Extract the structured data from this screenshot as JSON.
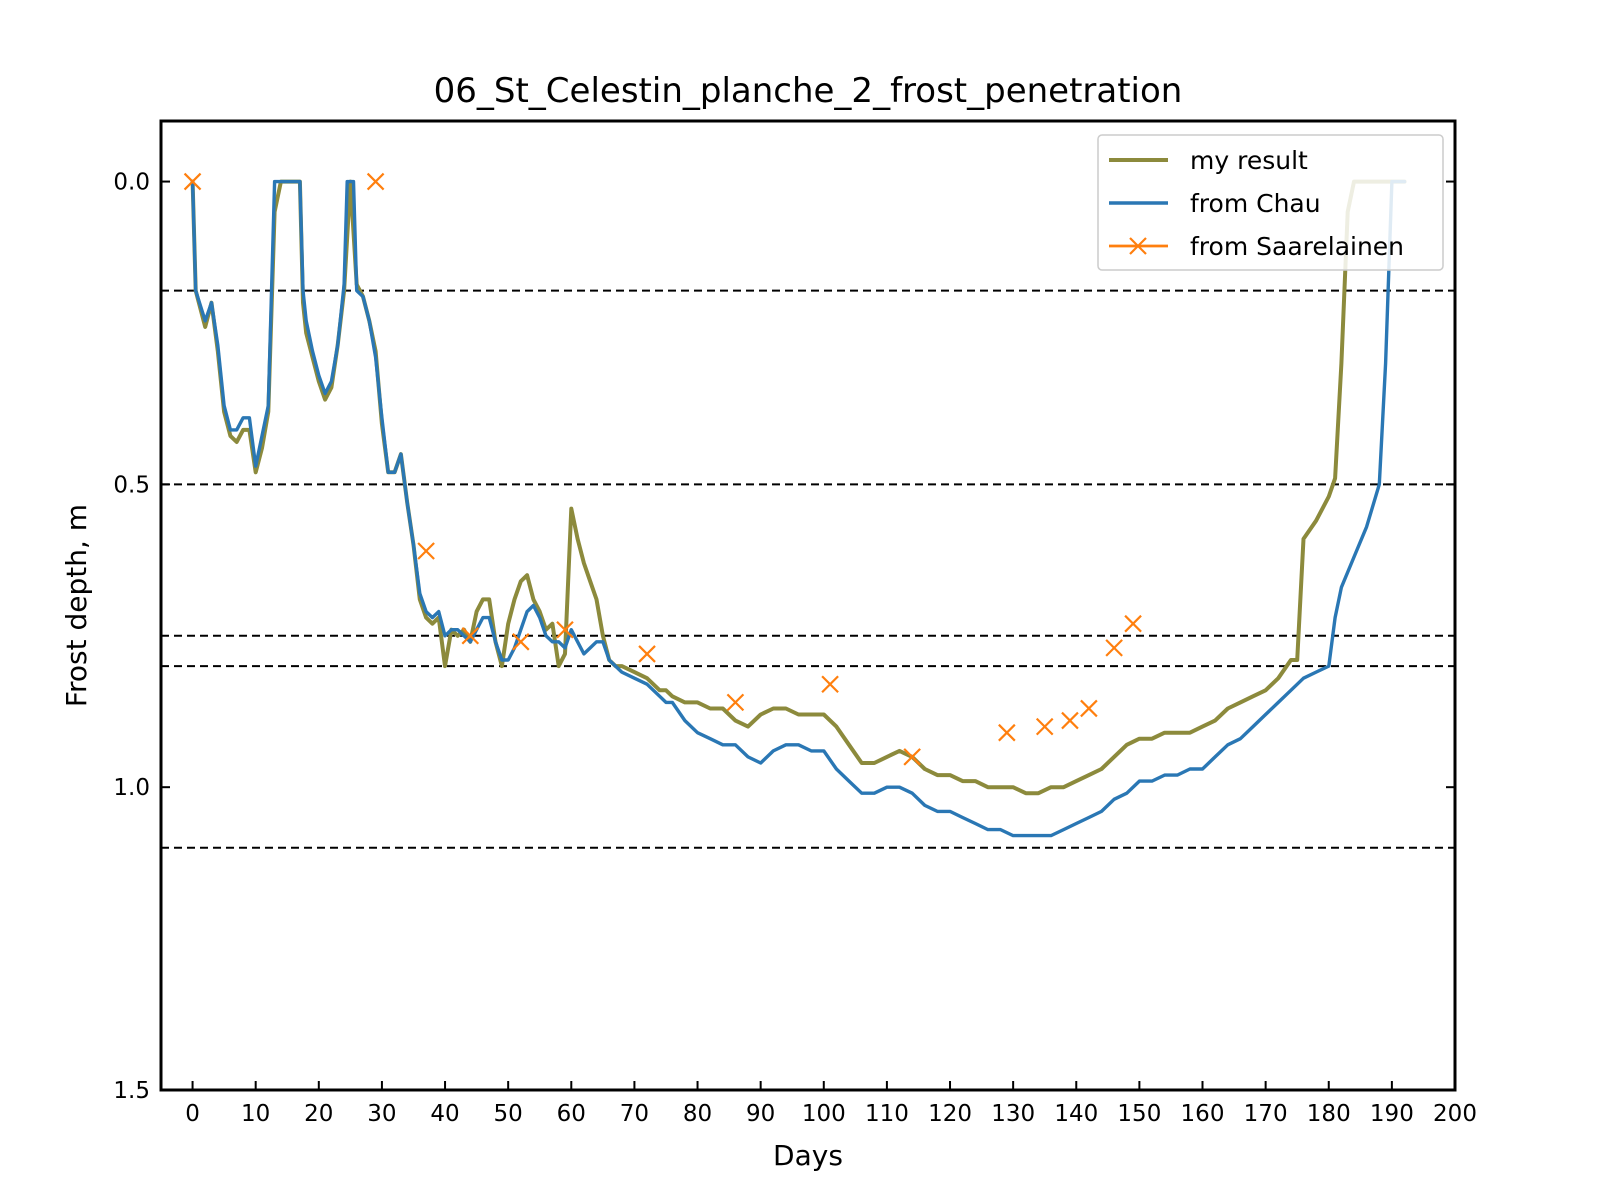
{
  "chart_data": {
    "type": "line",
    "title": "06_St_Celestin_planche_2_frost_penetration",
    "xlabel": "Days",
    "ylabel": "Frost depth, m",
    "xlim": [
      -5,
      200
    ],
    "ylim": [
      1.5,
      -0.1
    ],
    "y_inverted": true,
    "x_ticks": [
      "0",
      "10",
      "20",
      "30",
      "40",
      "50",
      "60",
      "70",
      "80",
      "90",
      "100",
      "110",
      "120",
      "130",
      "140",
      "150",
      "160",
      "170",
      "180",
      "190",
      "200"
    ],
    "y_ticks": [
      "0.0",
      "0.5",
      "1.0",
      "1.5"
    ],
    "reference_lines_y": [
      0.18,
      0.5,
      0.75,
      0.8,
      1.1
    ],
    "legend_position": "upper right",
    "series": [
      {
        "name": "my result",
        "color": "#8c8a3c",
        "style": "line",
        "points": [
          [
            0,
            0
          ],
          [
            0.5,
            0.18
          ],
          [
            2,
            0.24
          ],
          [
            3,
            0.2
          ],
          [
            4,
            0.28
          ],
          [
            5,
            0.38
          ],
          [
            6,
            0.42
          ],
          [
            7,
            0.43
          ],
          [
            8,
            0.41
          ],
          [
            9,
            0.41
          ],
          [
            10,
            0.48
          ],
          [
            11,
            0.44
          ],
          [
            12,
            0.38
          ],
          [
            13,
            0.05
          ],
          [
            14,
            0
          ],
          [
            17,
            0
          ],
          [
            17.5,
            0.2
          ],
          [
            18,
            0.25
          ],
          [
            19,
            0.29
          ],
          [
            20,
            0.33
          ],
          [
            21,
            0.36
          ],
          [
            22,
            0.34
          ],
          [
            23,
            0.27
          ],
          [
            24,
            0.18
          ],
          [
            25,
            0
          ],
          [
            26,
            0.17
          ],
          [
            27,
            0.19
          ],
          [
            28,
            0.23
          ],
          [
            29,
            0.28
          ],
          [
            30,
            0.4
          ],
          [
            31,
            0.48
          ],
          [
            32,
            0.48
          ],
          [
            33,
            0.45
          ],
          [
            34,
            0.53
          ],
          [
            35,
            0.6
          ],
          [
            36,
            0.69
          ],
          [
            37,
            0.72
          ],
          [
            38,
            0.73
          ],
          [
            39,
            0.72
          ],
          [
            40,
            0.8
          ],
          [
            41,
            0.74
          ],
          [
            42,
            0.75
          ],
          [
            43,
            0.74
          ],
          [
            44,
            0.76
          ],
          [
            45,
            0.71
          ],
          [
            46,
            0.69
          ],
          [
            47,
            0.69
          ],
          [
            48,
            0.76
          ],
          [
            49,
            0.8
          ],
          [
            50,
            0.73
          ],
          [
            51,
            0.69
          ],
          [
            52,
            0.66
          ],
          [
            53,
            0.65
          ],
          [
            54,
            0.69
          ],
          [
            55,
            0.71
          ],
          [
            56,
            0.74
          ],
          [
            57,
            0.73
          ],
          [
            58,
            0.8
          ],
          [
            59,
            0.78
          ],
          [
            60,
            0.54
          ],
          [
            61,
            0.59
          ],
          [
            62,
            0.63
          ],
          [
            63,
            0.66
          ],
          [
            64,
            0.69
          ],
          [
            65,
            0.75
          ],
          [
            66,
            0.79
          ],
          [
            67,
            0.8
          ],
          [
            68,
            0.8
          ],
          [
            70,
            0.81
          ],
          [
            72,
            0.82
          ],
          [
            74,
            0.84
          ],
          [
            75,
            0.84
          ],
          [
            76,
            0.85
          ],
          [
            78,
            0.86
          ],
          [
            80,
            0.86
          ],
          [
            82,
            0.87
          ],
          [
            84,
            0.87
          ],
          [
            86,
            0.89
          ],
          [
            88,
            0.9
          ],
          [
            90,
            0.88
          ],
          [
            92,
            0.87
          ],
          [
            94,
            0.87
          ],
          [
            96,
            0.88
          ],
          [
            98,
            0.88
          ],
          [
            100,
            0.88
          ],
          [
            102,
            0.9
          ],
          [
            104,
            0.93
          ],
          [
            106,
            0.96
          ],
          [
            108,
            0.96
          ],
          [
            110,
            0.95
          ],
          [
            112,
            0.94
          ],
          [
            114,
            0.95
          ],
          [
            116,
            0.97
          ],
          [
            118,
            0.98
          ],
          [
            120,
            0.98
          ],
          [
            122,
            0.99
          ],
          [
            124,
            0.99
          ],
          [
            126,
            1.0
          ],
          [
            128,
            1.0
          ],
          [
            130,
            1.0
          ],
          [
            132,
            1.01
          ],
          [
            134,
            1.01
          ],
          [
            136,
            1.0
          ],
          [
            138,
            1.0
          ],
          [
            140,
            0.99
          ],
          [
            142,
            0.98
          ],
          [
            144,
            0.97
          ],
          [
            146,
            0.95
          ],
          [
            148,
            0.93
          ],
          [
            150,
            0.92
          ],
          [
            152,
            0.92
          ],
          [
            154,
            0.91
          ],
          [
            156,
            0.91
          ],
          [
            158,
            0.91
          ],
          [
            160,
            0.9
          ],
          [
            162,
            0.89
          ],
          [
            164,
            0.87
          ],
          [
            166,
            0.86
          ],
          [
            168,
            0.85
          ],
          [
            170,
            0.84
          ],
          [
            172,
            0.82
          ],
          [
            174,
            0.79
          ],
          [
            175,
            0.79
          ],
          [
            176,
            0.59
          ],
          [
            178,
            0.56
          ],
          [
            180,
            0.52
          ],
          [
            181,
            0.49
          ],
          [
            182,
            0.3
          ],
          [
            183,
            0.05
          ],
          [
            184,
            0
          ],
          [
            190,
            0
          ],
          [
            192,
            0
          ]
        ]
      },
      {
        "name": "from Chau",
        "color": "#2a77b4",
        "style": "line",
        "points": [
          [
            0,
            0
          ],
          [
            0.5,
            0.18
          ],
          [
            2,
            0.23
          ],
          [
            3,
            0.2
          ],
          [
            4,
            0.27
          ],
          [
            5,
            0.37
          ],
          [
            6,
            0.41
          ],
          [
            7,
            0.41
          ],
          [
            8,
            0.39
          ],
          [
            9,
            0.39
          ],
          [
            10,
            0.47
          ],
          [
            11,
            0.42
          ],
          [
            12,
            0.37
          ],
          [
            13,
            0
          ],
          [
            17,
            0
          ],
          [
            17.5,
            0.18
          ],
          [
            18,
            0.23
          ],
          [
            19,
            0.28
          ],
          [
            20,
            0.32
          ],
          [
            21,
            0.35
          ],
          [
            22,
            0.33
          ],
          [
            23,
            0.27
          ],
          [
            24,
            0.17
          ],
          [
            24.5,
            0
          ],
          [
            25.5,
            0
          ],
          [
            26,
            0.18
          ],
          [
            27,
            0.19
          ],
          [
            28,
            0.23
          ],
          [
            29,
            0.29
          ],
          [
            30,
            0.39
          ],
          [
            31,
            0.48
          ],
          [
            32,
            0.48
          ],
          [
            33,
            0.45
          ],
          [
            34,
            0.53
          ],
          [
            35,
            0.6
          ],
          [
            36,
            0.68
          ],
          [
            37,
            0.71
          ],
          [
            38,
            0.72
          ],
          [
            39,
            0.71
          ],
          [
            40,
            0.75
          ],
          [
            41,
            0.74
          ],
          [
            42,
            0.74
          ],
          [
            43,
            0.75
          ],
          [
            44,
            0.76
          ],
          [
            45,
            0.74
          ],
          [
            46,
            0.72
          ],
          [
            47,
            0.72
          ],
          [
            48,
            0.76
          ],
          [
            49,
            0.79
          ],
          [
            50,
            0.79
          ],
          [
            51,
            0.77
          ],
          [
            52,
            0.74
          ],
          [
            53,
            0.71
          ],
          [
            54,
            0.7
          ],
          [
            55,
            0.72
          ],
          [
            56,
            0.75
          ],
          [
            57,
            0.76
          ],
          [
            58,
            0.76
          ],
          [
            59,
            0.77
          ],
          [
            60,
            0.74
          ],
          [
            61,
            0.76
          ],
          [
            62,
            0.78
          ],
          [
            63,
            0.77
          ],
          [
            64,
            0.76
          ],
          [
            65,
            0.76
          ],
          [
            66,
            0.79
          ],
          [
            67,
            0.8
          ],
          [
            68,
            0.81
          ],
          [
            70,
            0.82
          ],
          [
            72,
            0.83
          ],
          [
            74,
            0.85
          ],
          [
            75,
            0.86
          ],
          [
            76,
            0.86
          ],
          [
            78,
            0.89
          ],
          [
            80,
            0.91
          ],
          [
            82,
            0.92
          ],
          [
            84,
            0.93
          ],
          [
            86,
            0.93
          ],
          [
            88,
            0.95
          ],
          [
            90,
            0.96
          ],
          [
            92,
            0.94
          ],
          [
            94,
            0.93
          ],
          [
            96,
            0.93
          ],
          [
            98,
            0.94
          ],
          [
            100,
            0.94
          ],
          [
            102,
            0.97
          ],
          [
            104,
            0.99
          ],
          [
            106,
            1.01
          ],
          [
            108,
            1.01
          ],
          [
            110,
            1.0
          ],
          [
            112,
            1.0
          ],
          [
            114,
            1.01
          ],
          [
            116,
            1.03
          ],
          [
            118,
            1.04
          ],
          [
            120,
            1.04
          ],
          [
            122,
            1.05
          ],
          [
            124,
            1.06
          ],
          [
            126,
            1.07
          ],
          [
            128,
            1.07
          ],
          [
            130,
            1.08
          ],
          [
            132,
            1.08
          ],
          [
            134,
            1.08
          ],
          [
            136,
            1.08
          ],
          [
            138,
            1.07
          ],
          [
            140,
            1.06
          ],
          [
            142,
            1.05
          ],
          [
            144,
            1.04
          ],
          [
            146,
            1.02
          ],
          [
            148,
            1.01
          ],
          [
            150,
            0.99
          ],
          [
            152,
            0.99
          ],
          [
            154,
            0.98
          ],
          [
            156,
            0.98
          ],
          [
            158,
            0.97
          ],
          [
            160,
            0.97
          ],
          [
            162,
            0.95
          ],
          [
            164,
            0.93
          ],
          [
            166,
            0.92
          ],
          [
            168,
            0.9
          ],
          [
            170,
            0.88
          ],
          [
            172,
            0.86
          ],
          [
            174,
            0.84
          ],
          [
            176,
            0.82
          ],
          [
            178,
            0.81
          ],
          [
            180,
            0.8
          ],
          [
            181,
            0.72
          ],
          [
            182,
            0.67
          ],
          [
            184,
            0.62
          ],
          [
            186,
            0.57
          ],
          [
            188,
            0.5
          ],
          [
            189,
            0.3
          ],
          [
            190,
            0
          ],
          [
            192,
            0
          ]
        ]
      },
      {
        "name": "from Saarelainen",
        "color": "#ff7f0e",
        "style": "marker-x",
        "points": [
          [
            0,
            0
          ],
          [
            29,
            0
          ],
          [
            37,
            0.61
          ],
          [
            44,
            0.75
          ],
          [
            52,
            0.76
          ],
          [
            59,
            0.74
          ],
          [
            72,
            0.78
          ],
          [
            86,
            0.86
          ],
          [
            101,
            0.83
          ],
          [
            114,
            0.95
          ],
          [
            129,
            0.91
          ],
          [
            135,
            0.9
          ],
          [
            139,
            0.89
          ],
          [
            142,
            0.87
          ],
          [
            146,
            0.77
          ],
          [
            149,
            0.73
          ]
        ]
      }
    ]
  }
}
